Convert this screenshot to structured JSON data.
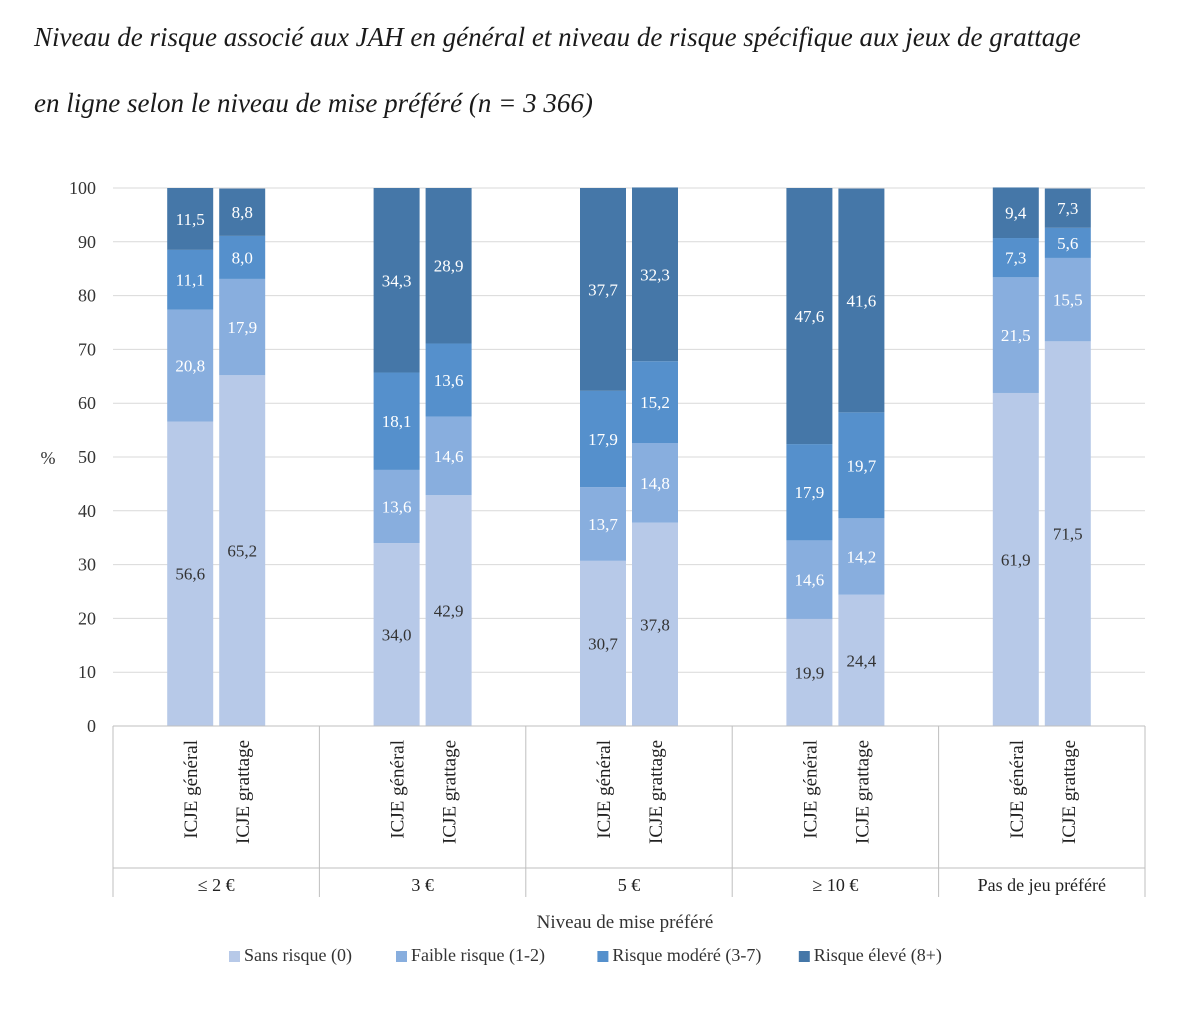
{
  "title_line1": "Niveau de risque associé aux JAH en général et niveau de risque spécifique aux jeux de grattage",
  "title_line2": "en ligne selon le niveau de mise préféré (n = 3 366)",
  "chart_data": {
    "type": "stacked-bar",
    "ylabel": "%",
    "xlabel": "Niveau de mise préféré",
    "ylim": [
      0,
      100
    ],
    "yticks": [
      0,
      10,
      20,
      30,
      40,
      50,
      60,
      70,
      80,
      90,
      100
    ],
    "grid": true,
    "legend_position": "bottom",
    "groups": [
      "≤ 2 €",
      "3 €",
      "5 €",
      "≥ 10 €",
      "Pas de jeu préféré"
    ],
    "bar_labels": [
      "ICJE général",
      "ICJE grattage"
    ],
    "series": [
      {
        "name": "Sans risque (0)",
        "color": "#b7c9e8",
        "values": [
          56.6,
          65.2,
          34.0,
          42.9,
          30.7,
          37.8,
          19.9,
          24.4,
          61.9,
          71.5
        ],
        "labels": [
          "56,6",
          "65,2",
          "34,0",
          "42,9",
          "30,7",
          "37,8",
          "19,9",
          "24,4",
          "61,9",
          "71,5"
        ]
      },
      {
        "name": "Faible risque (1-2)",
        "color": "#88aede",
        "values": [
          20.8,
          17.9,
          13.6,
          14.6,
          13.7,
          14.8,
          14.6,
          14.2,
          21.5,
          15.5
        ],
        "labels": [
          "20,8",
          "17,9",
          "13,6",
          "14,6",
          "13,7",
          "14,8",
          "14,6",
          "14,2",
          "21,5",
          "15,5"
        ]
      },
      {
        "name": "Risque modéré (3-7)",
        "color": "#5590cc",
        "values": [
          11.1,
          8.0,
          18.1,
          13.6,
          17.9,
          15.2,
          17.9,
          19.7,
          7.3,
          5.6
        ],
        "labels": [
          "11,1",
          "8,0",
          "18,1",
          "13,6",
          "17,9",
          "15,2",
          "17,9",
          "19,7",
          "7,3",
          "5,6"
        ]
      },
      {
        "name": "Risque élevé (8+)",
        "color": "#4577a8",
        "values": [
          11.5,
          8.8,
          34.3,
          28.9,
          37.7,
          32.3,
          47.6,
          41.6,
          9.4,
          7.3
        ],
        "labels": [
          "11,5",
          "8,8",
          "34,3",
          "28,9",
          "37,7",
          "32,3",
          "47,6",
          "41,6",
          "9,4",
          "7,3"
        ]
      }
    ]
  }
}
